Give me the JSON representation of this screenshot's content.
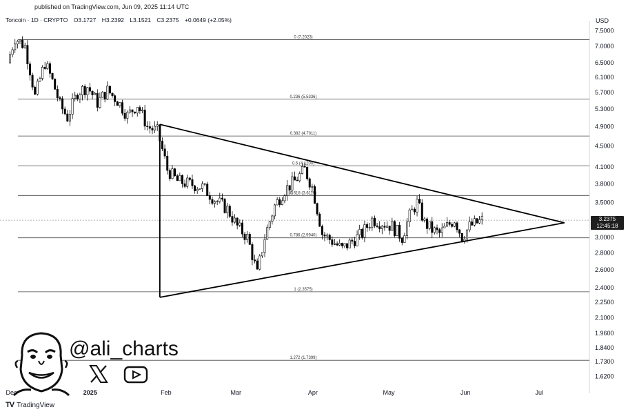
{
  "header": {
    "published": "published on TradingView.com, Jun 09, 2025 11:14 UTC",
    "symbol": "Toncoin · 1D · CRYPTO",
    "open": "O3.1727",
    "high": "H3.2392",
    "low": "L3.1521",
    "close": "C3.2375",
    "change": "+0.0649 (+2.05%)"
  },
  "currency": "USD",
  "branding": {
    "tradingview": "TradingView",
    "handle": "@ali_charts"
  },
  "price_badge": {
    "price": "3.2375",
    "countdown": "12:45:18"
  },
  "colors": {
    "up": "#ffffff",
    "down": "#000000",
    "lines": "#000000",
    "badge": "#1e1e1e"
  },
  "chart_data": {
    "type": "candlestick",
    "price_axis": [
      "7.5000",
      "7.0000",
      "6.5000",
      "6.1000",
      "5.7000",
      "5.3000",
      "4.9000",
      "4.5000",
      "4.1000",
      "3.8000",
      "3.5000",
      "3.0000",
      "2.8000",
      "2.6000",
      "2.4000",
      "2.2500",
      "2.1000",
      "1.9600",
      "1.8400",
      "1.7300",
      "1.6200"
    ],
    "x_axis": [
      "Dec",
      "2025",
      "Feb",
      "Mar",
      "Apr",
      "May",
      "Jun",
      "Jul"
    ],
    "fib_levels": [
      {
        "label": "0 (7.2023)",
        "price": 7.2023
      },
      {
        "label": "0.236 (5.5336)",
        "price": 5.5336
      },
      {
        "label": "0.382 (4.7011)",
        "price": 4.7011
      },
      {
        "label": "0.5 (4.1200)",
        "price": 4.12
      },
      {
        "label": "0.618 (3.6119)",
        "price": 3.6119
      },
      {
        "label": "0.786 (2.9940)",
        "price": 2.994
      },
      {
        "label": "1 (2.3575)",
        "price": 2.3575
      },
      {
        "label": "1.272 (1.7399)",
        "price": 1.7399
      }
    ],
    "current_price": 3.2375,
    "triangle": {
      "apex_date": "2025-07-11",
      "apex_price": 3.2,
      "upper_start": {
        "date": "2025-01-30",
        "price": 4.95
      },
      "lower_start": {
        "date": "2025-01-30",
        "price": 2.3
      }
    },
    "price_path": [
      [
        "2024-12-01",
        6.5
      ],
      [
        "2024-12-04",
        7.25
      ],
      [
        "2024-12-08",
        7.0
      ],
      [
        "2024-12-12",
        5.6
      ],
      [
        "2024-12-16",
        6.5
      ],
      [
        "2024-12-19",
        6.0
      ],
      [
        "2024-12-22",
        5.4
      ],
      [
        "2024-12-25",
        5.1
      ],
      [
        "2024-12-29",
        5.7
      ],
      [
        "2025-01-02",
        5.85
      ],
      [
        "2025-01-06",
        5.45
      ],
      [
        "2025-01-10",
        5.75
      ],
      [
        "2025-01-14",
        5.5
      ],
      [
        "2025-01-18",
        5.15
      ],
      [
        "2025-01-22",
        5.4
      ],
      [
        "2025-01-26",
        4.9
      ],
      [
        "2025-01-30",
        4.8
      ],
      [
        "2025-02-03",
        4.05
      ],
      [
        "2025-02-07",
        3.85
      ],
      [
        "2025-02-12",
        3.8
      ],
      [
        "2025-02-17",
        3.75
      ],
      [
        "2025-02-22",
        3.55
      ],
      [
        "2025-02-27",
        3.4
      ],
      [
        "2025-03-03",
        3.15
      ],
      [
        "2025-03-07",
        3.0
      ],
      [
        "2025-03-11",
        2.55
      ],
      [
        "2025-03-14",
        3.0
      ],
      [
        "2025-03-18",
        3.45
      ],
      [
        "2025-03-22",
        3.7
      ],
      [
        "2025-03-26",
        3.85
      ],
      [
        "2025-03-30",
        4.05
      ],
      [
        "2025-04-02",
        3.75
      ],
      [
        "2025-04-06",
        3.05
      ],
      [
        "2025-04-10",
        2.95
      ],
      [
        "2025-04-14",
        2.85
      ],
      [
        "2025-04-18",
        2.95
      ],
      [
        "2025-04-22",
        3.05
      ],
      [
        "2025-04-26",
        3.25
      ],
      [
        "2025-04-30",
        3.2
      ],
      [
        "2025-05-04",
        3.15
      ],
      [
        "2025-05-08",
        3.0
      ],
      [
        "2025-05-11",
        3.3
      ],
      [
        "2025-05-14",
        3.5
      ],
      [
        "2025-05-17",
        3.2
      ],
      [
        "2025-05-20",
        3.1
      ],
      [
        "2025-05-23",
        3.05
      ],
      [
        "2025-05-26",
        3.15
      ],
      [
        "2025-05-29",
        3.25
      ],
      [
        "2025-06-01",
        3.0
      ],
      [
        "2025-06-04",
        3.15
      ],
      [
        "2025-06-07",
        3.2
      ],
      [
        "2025-06-09",
        3.2375
      ]
    ]
  }
}
